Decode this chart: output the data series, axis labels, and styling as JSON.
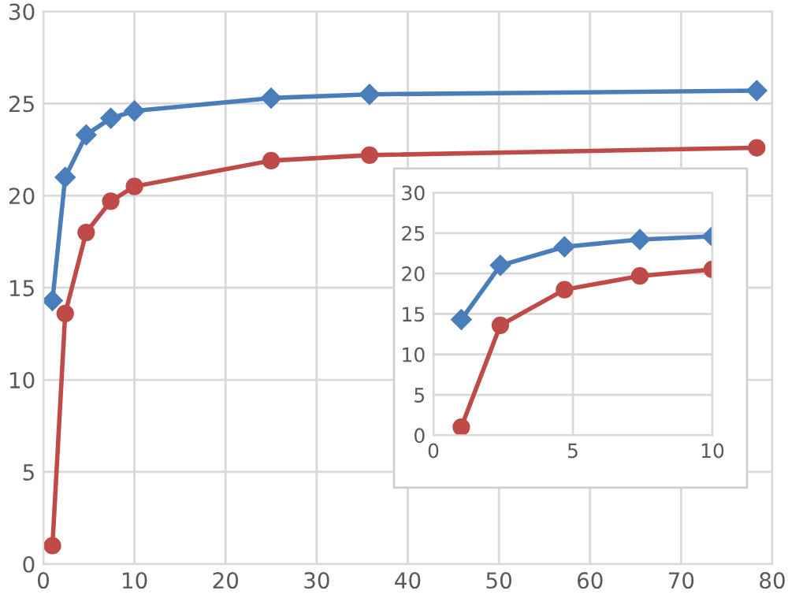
{
  "chart_data": [
    {
      "type": "line",
      "xlim": [
        0,
        80
      ],
      "xticks": [
        0,
        10,
        20,
        30,
        40,
        50,
        60,
        70,
        80
      ],
      "ylim": [
        0,
        30
      ],
      "yticks": [
        0,
        5,
        10,
        15,
        20,
        25,
        30
      ],
      "grid": true,
      "series": [
        {
          "color": "#4a7ebb",
          "marker": "diamond",
          "x": [
            1,
            2.4,
            4.7,
            7.4,
            10,
            25,
            35.8,
            78.3
          ],
          "values": [
            14.3,
            21.0,
            23.3,
            24.2,
            24.6,
            25.3,
            25.5,
            25.7
          ]
        },
        {
          "color": "#be4b48",
          "marker": "circle",
          "x": [
            1,
            2.4,
            4.7,
            7.4,
            10,
            25,
            35.8,
            78.3
          ],
          "values": [
            1.0,
            13.6,
            18.0,
            19.7,
            20.5,
            21.9,
            22.2,
            22.6
          ]
        }
      ]
    },
    {
      "type": "line",
      "xlim": [
        0,
        10
      ],
      "xticks": [
        0,
        5,
        10
      ],
      "ylim": [
        0,
        30
      ],
      "yticks": [
        0,
        5,
        10,
        15,
        20,
        25,
        30
      ],
      "grid": true,
      "series": [
        {
          "color": "#4a7ebb",
          "marker": "diamond",
          "x": [
            1,
            2.4,
            4.7,
            7.4,
            10
          ],
          "values": [
            14.3,
            21.0,
            23.3,
            24.2,
            24.6
          ]
        },
        {
          "color": "#be4b48",
          "marker": "circle",
          "x": [
            1,
            2.4,
            4.7,
            7.4,
            10
          ],
          "values": [
            1.0,
            13.6,
            18.0,
            19.7,
            20.5
          ]
        }
      ]
    }
  ]
}
